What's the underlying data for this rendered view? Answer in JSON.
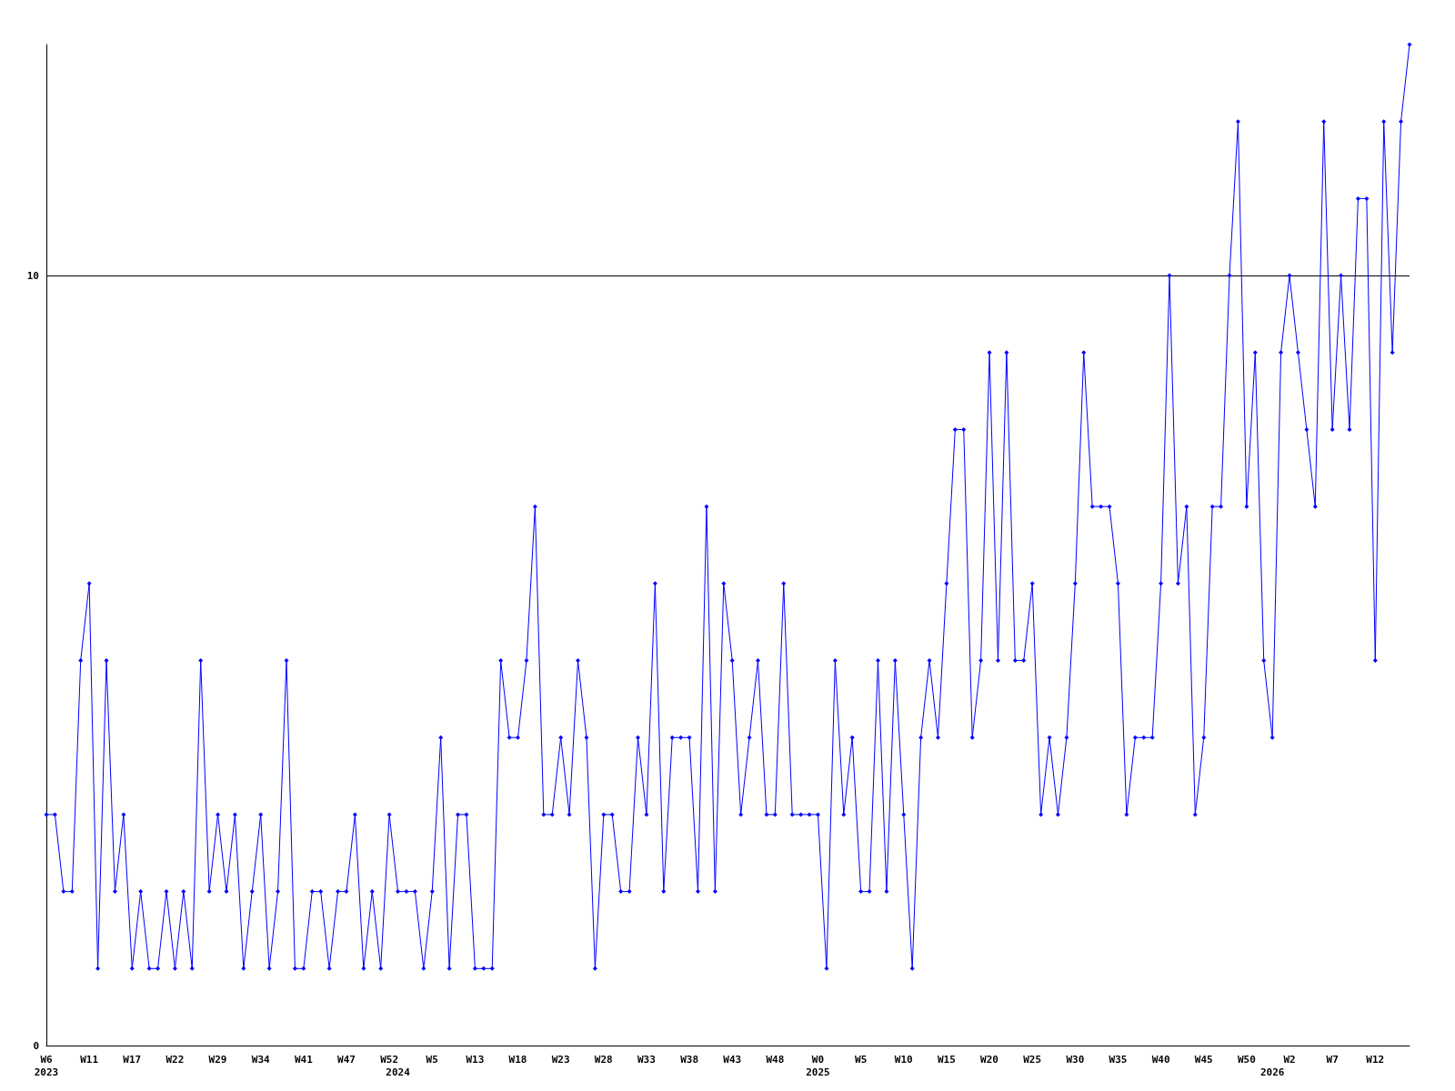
{
  "chart_data": {
    "type": "line",
    "categories": [
      "W6\n2023",
      null,
      null,
      null,
      null,
      "W11",
      null,
      null,
      null,
      null,
      "W17",
      null,
      null,
      null,
      null,
      "W22",
      null,
      null,
      null,
      null,
      "W29",
      null,
      null,
      null,
      null,
      "W34",
      null,
      null,
      null,
      null,
      "W41",
      null,
      null,
      null,
      null,
      "W47",
      null,
      null,
      null,
      null,
      "W52",
      "\n2024",
      null,
      null,
      null,
      "W5",
      null,
      null,
      null,
      null,
      "W13",
      null,
      null,
      null,
      null,
      "W18",
      null,
      null,
      null,
      null,
      "W23",
      null,
      null,
      null,
      null,
      "W28",
      null,
      null,
      null,
      null,
      "W33",
      null,
      null,
      null,
      null,
      "W38",
      null,
      null,
      null,
      null,
      "W43",
      null,
      null,
      null,
      null,
      "W48",
      null,
      null,
      null,
      null,
      "W0\n2025",
      null,
      null,
      null,
      null,
      "W5",
      null,
      null,
      null,
      null,
      "W10",
      null,
      null,
      null,
      null,
      "W15",
      null,
      null,
      null,
      null,
      "W20",
      null,
      null,
      null,
      null,
      "W25",
      null,
      null,
      null,
      null,
      "W30",
      null,
      null,
      null,
      null,
      "W35",
      null,
      null,
      null,
      null,
      "W40",
      null,
      null,
      null,
      null,
      "W45",
      null,
      null,
      null,
      null,
      "W50",
      null,
      null,
      "\n2026",
      null,
      "W2",
      null,
      null,
      null,
      null,
      "W7",
      null,
      null,
      null,
      null,
      "W12",
      null,
      null,
      null,
      null
    ],
    "series": [
      {
        "color": "#0000ff",
        "values": [
          3,
          3,
          2,
          2,
          5,
          6,
          1,
          5,
          2,
          3,
          1,
          2,
          1,
          1,
          2,
          1,
          2,
          1,
          5,
          2,
          3,
          2,
          3,
          1,
          2,
          3,
          1,
          2,
          5,
          1,
          1,
          2,
          2,
          1,
          2,
          2,
          3,
          1,
          2,
          1,
          3,
          2,
          2,
          2,
          1,
          2,
          4,
          1,
          3,
          3,
          1,
          1,
          1,
          5,
          4,
          4,
          5,
          7,
          3,
          3,
          4,
          3,
          5,
          4,
          1,
          3,
          3,
          2,
          2,
          4,
          3,
          6,
          2,
          4,
          4,
          4,
          2,
          7,
          2,
          6,
          5,
          3,
          4,
          5,
          3,
          3,
          6,
          3,
          3,
          3,
          3,
          1,
          5,
          3,
          4,
          2,
          2,
          5,
          2,
          5,
          3,
          1,
          4,
          5,
          4,
          6,
          8,
          8,
          4,
          5,
          9,
          5,
          9,
          5,
          5,
          6,
          3,
          4,
          3,
          4,
          6,
          9,
          7,
          7,
          7,
          6,
          3,
          4,
          4,
          4,
          6,
          10,
          6,
          7,
          3,
          4,
          7,
          7,
          10,
          12,
          7,
          9,
          5,
          4,
          9,
          10,
          9,
          8,
          7,
          12,
          8,
          10,
          8,
          11,
          11,
          5,
          12,
          9,
          12,
          13
        ]
      }
    ],
    "ylim": [
      0,
      13
    ],
    "yticks": [
      0,
      10
    ],
    "grid": "y",
    "marker": "diamond",
    "line_style": "solid"
  }
}
